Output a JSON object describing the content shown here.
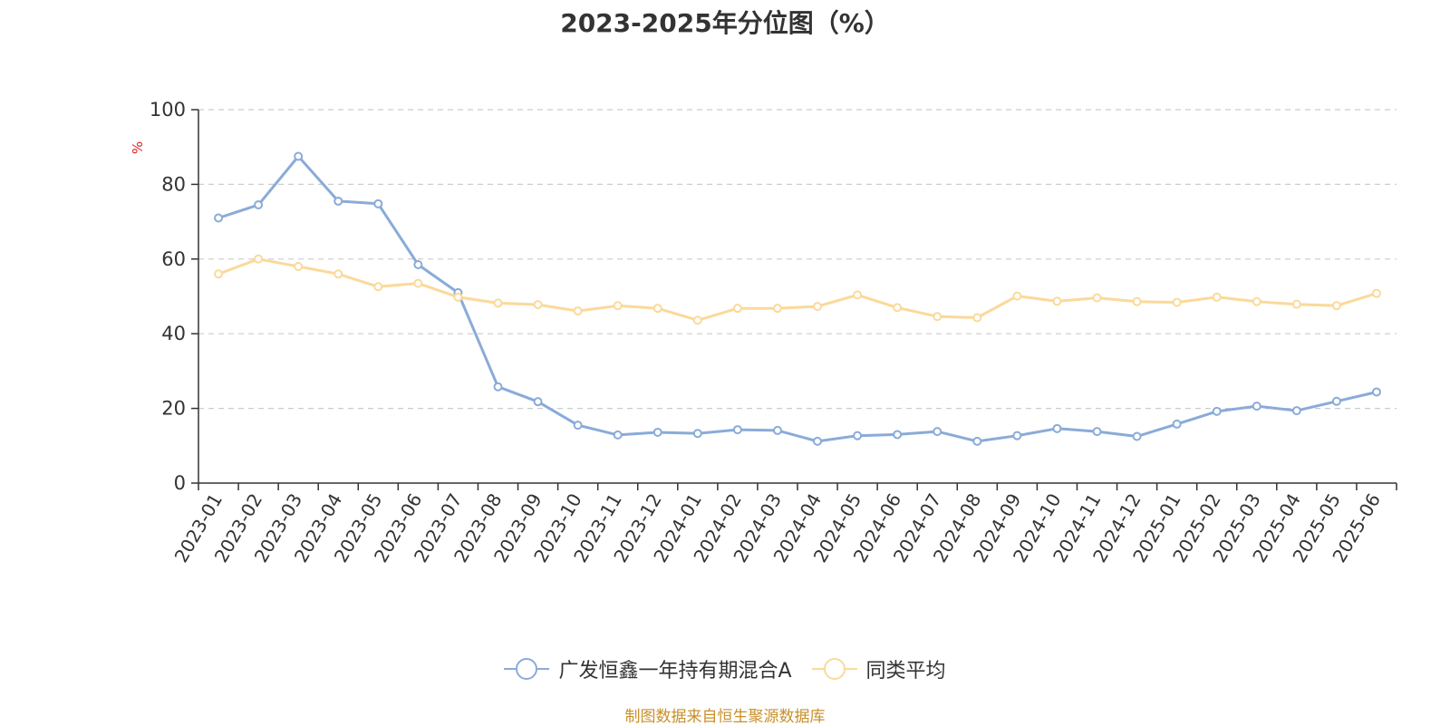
{
  "chart_data": {
    "type": "line",
    "title": "2023-2025年分位图（%）",
    "ylabel": "%",
    "ylim": [
      0,
      100
    ],
    "yticks": [
      0,
      20,
      40,
      60,
      80,
      100
    ],
    "grid": true,
    "legend_position": "bottom",
    "categories": [
      "2023-01",
      "2023-02",
      "2023-03",
      "2023-04",
      "2023-05",
      "2023-06",
      "2023-07",
      "2023-08",
      "2023-09",
      "2023-10",
      "2023-11",
      "2023-12",
      "2024-01",
      "2024-02",
      "2024-03",
      "2024-04",
      "2024-05",
      "2024-06",
      "2024-07",
      "2024-08",
      "2024-09",
      "2024-10",
      "2024-11",
      "2024-12",
      "2025-01",
      "2025-02",
      "2025-03",
      "2025-04",
      "2025-05",
      "2025-06"
    ],
    "series": [
      {
        "name": "广发恒鑫一年持有期混合A",
        "color": "#8aabd8",
        "values": [
          71,
          74.5,
          87.5,
          75.5,
          74.8,
          58.5,
          51,
          25.8,
          21.8,
          15.5,
          12.9,
          13.6,
          13.3,
          14.3,
          14.1,
          11.2,
          12.7,
          13,
          13.8,
          11.2,
          12.7,
          14.6,
          13.8,
          12.5,
          15.8,
          19.2,
          20.6,
          19.4,
          21.9,
          24.4
        ]
      },
      {
        "name": "同类平均",
        "color": "#fbd99a",
        "values": [
          56,
          60,
          58,
          56,
          52.6,
          53.5,
          49.8,
          48.2,
          47.8,
          46.1,
          47.5,
          46.8,
          43.6,
          46.8,
          46.8,
          47.3,
          50.4,
          47,
          44.6,
          44.3,
          50.1,
          48.7,
          49.6,
          48.6,
          48.4,
          49.8,
          48.6,
          47.9,
          47.5,
          50.8
        ]
      }
    ],
    "source": "制图数据来自恒生聚源数据库"
  },
  "colors": {
    "axis": "#333333",
    "grid": "#cccccc",
    "ylabel": "#e02020",
    "source": "#c8902a"
  }
}
